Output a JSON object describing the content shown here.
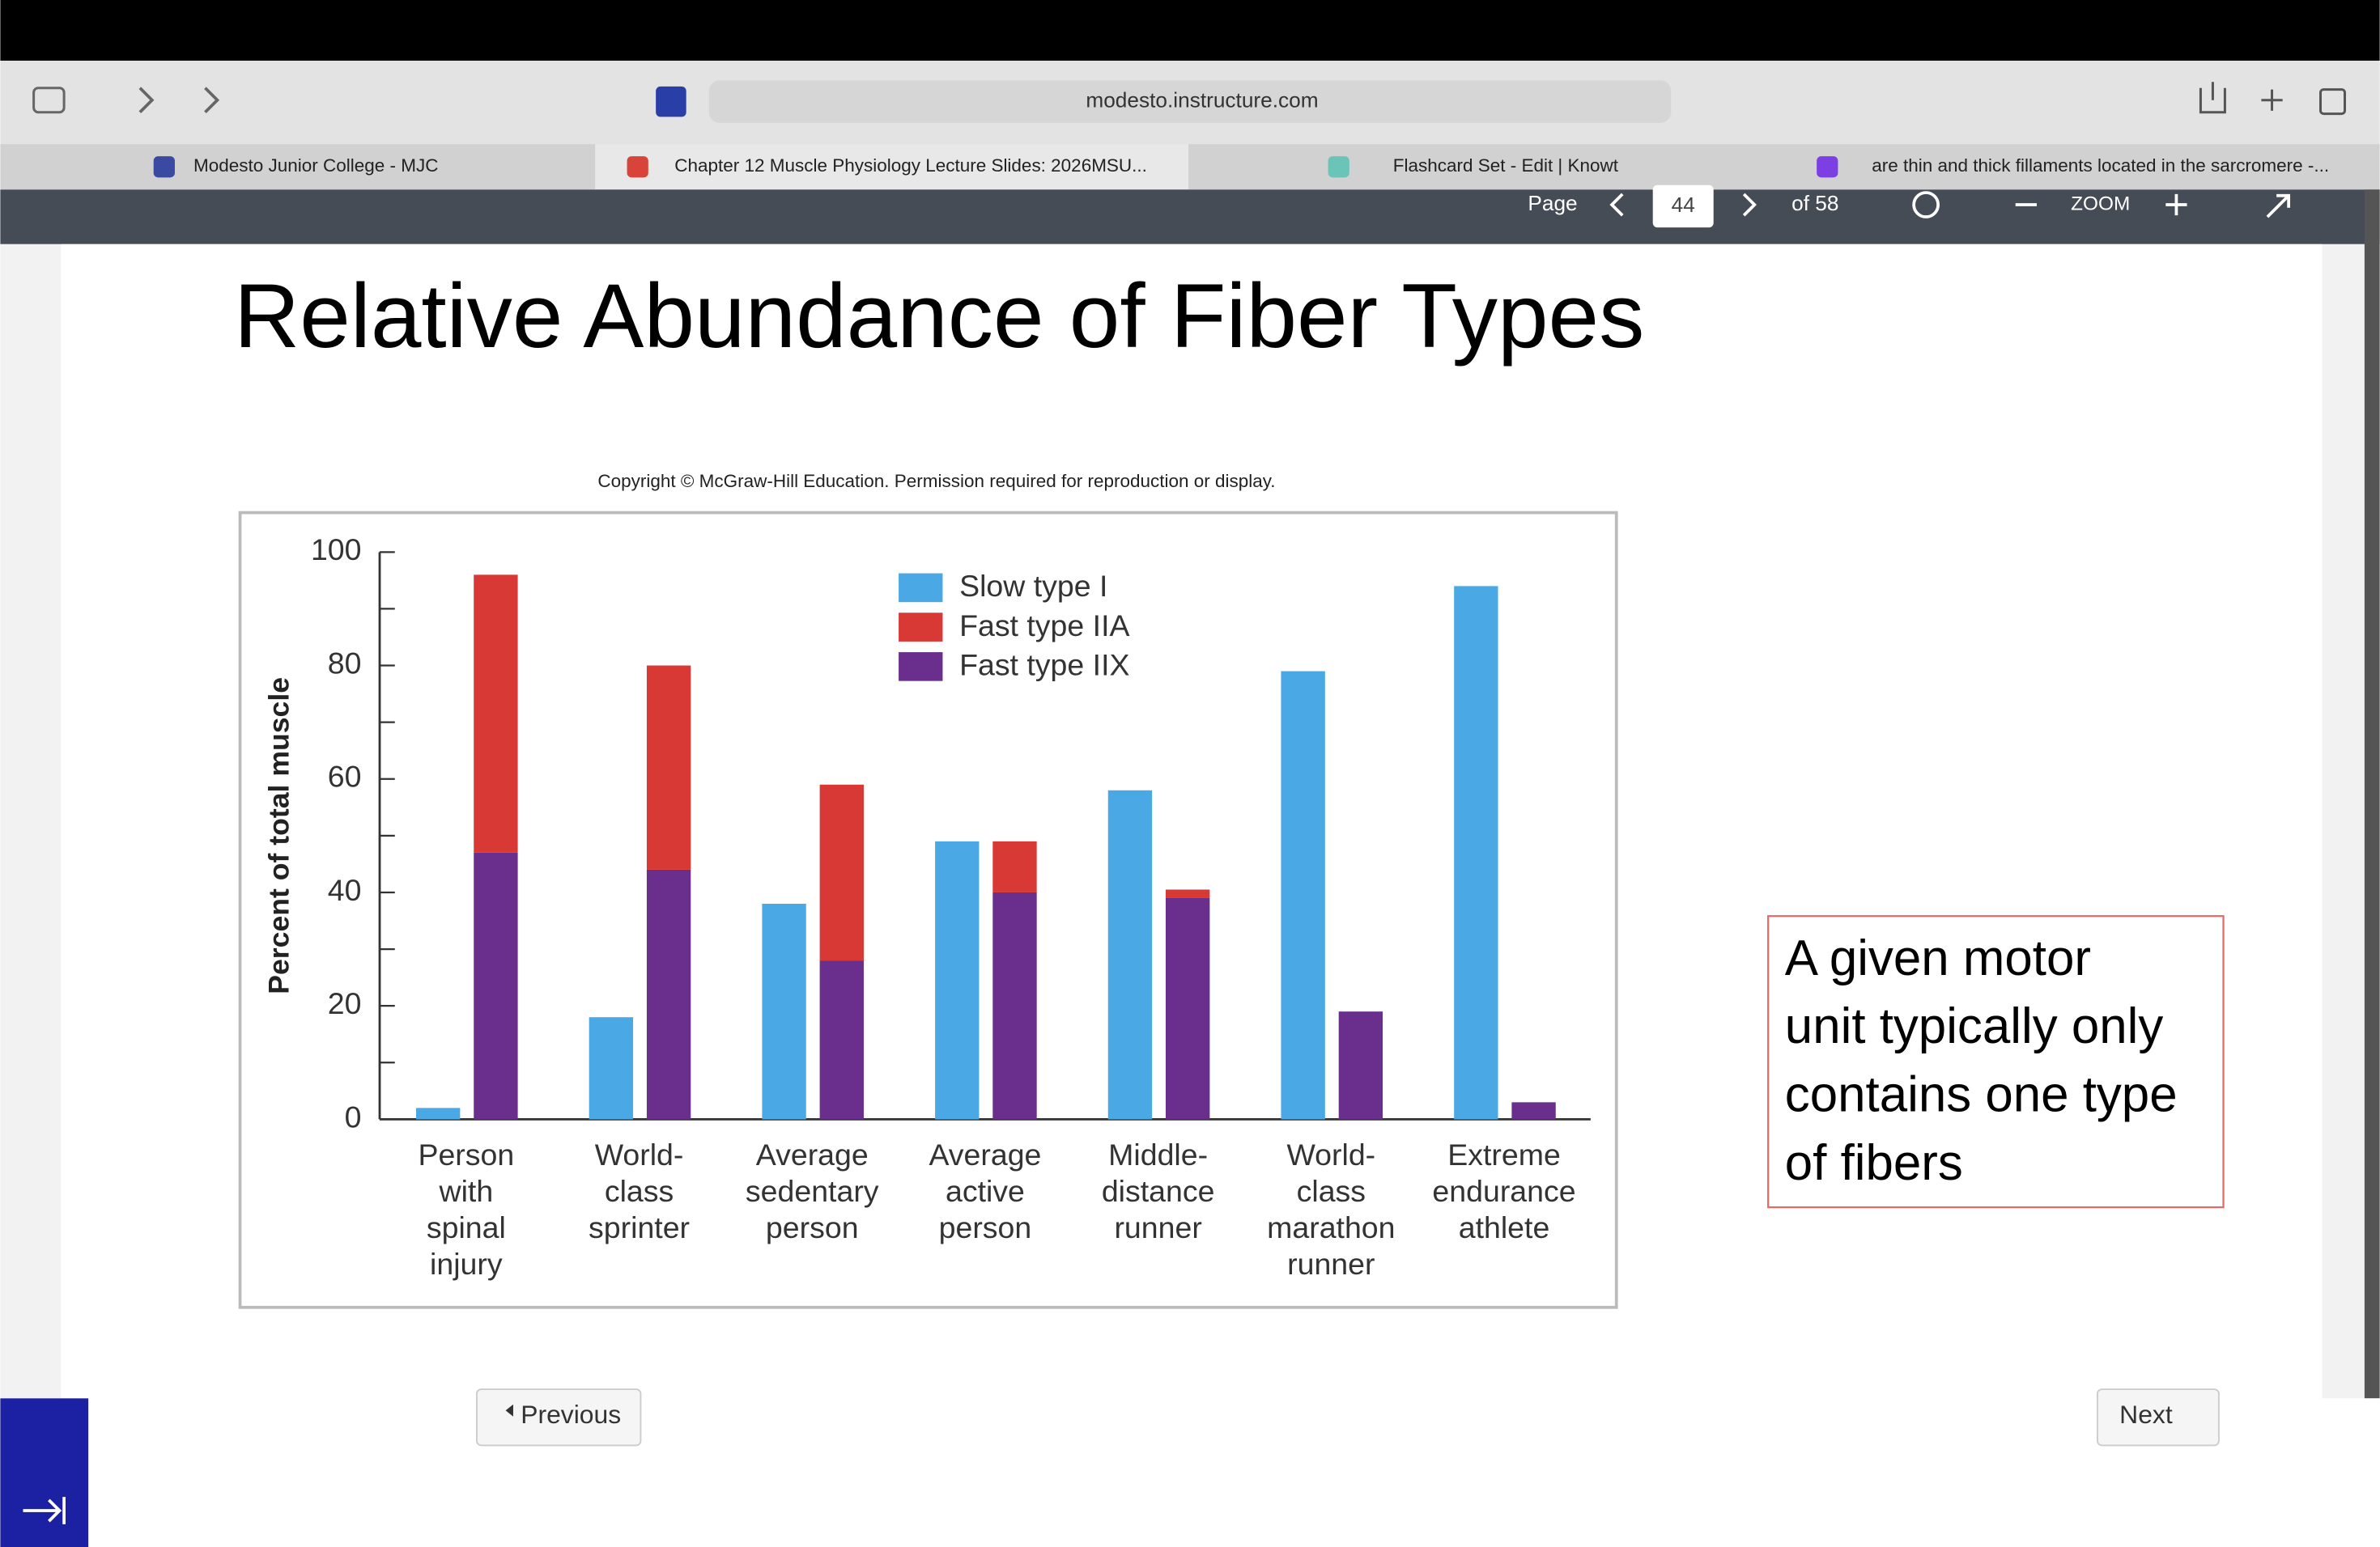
{
  "browser": {
    "url": "modesto.instructure.com",
    "tabs": [
      "Modesto Junior College - MJC",
      "Chapter 12 Muscle Physiology Lecture Slides: 2026MSU...",
      "Flashcard Set - Edit | Knowt",
      "are thin and thick fillaments located in the sarcromere -..."
    ]
  },
  "viewer": {
    "page_label": "Page",
    "page": "44",
    "of": "of 58",
    "zoom": "ZOOM"
  },
  "slide": {
    "title": "Relative Abundance of Fiber Types",
    "copyright": "Copyright © McGraw-Hill Education. Permission required for reproduction or display.",
    "note": [
      "A given motor",
      "unit typically only",
      "contains one type",
      "of fibers"
    ]
  },
  "nav": {
    "previous": "Previous",
    "next": "Next"
  },
  "chart_data": {
    "type": "grouped-stacked-bar",
    "ylabel": "Percent of total muscle",
    "categories": [
      [
        "Person",
        "with",
        "spinal",
        "injury"
      ],
      [
        "World-",
        "class",
        "sprinter"
      ],
      [
        "Average",
        "sedentary",
        "person"
      ],
      [
        "Average",
        "active",
        "person"
      ],
      [
        "Middle-",
        "distance",
        "runner"
      ],
      [
        "World-",
        "class",
        "marathon",
        "runner"
      ],
      [
        "Extreme",
        "endurance",
        "athlete"
      ]
    ],
    "series": [
      {
        "name": "Slow type I",
        "color": "#4aa9e5",
        "values": [
          2,
          18,
          38,
          49,
          58,
          79,
          94
        ]
      },
      {
        "name": "Fast type IIA",
        "color": "#d93935",
        "values": [
          49,
          36,
          31,
          9,
          1.5,
          0,
          0
        ]
      },
      {
        "name": "Fast type IIX",
        "color": "#6a2e8d",
        "values": [
          47,
          44,
          28,
          40,
          39,
          19,
          3
        ]
      }
    ],
    "ylim": [
      0,
      100
    ],
    "yticks": [
      0,
      20,
      40,
      60,
      80,
      100
    ],
    "minor_yticks": [
      10,
      30,
      50,
      70,
      90
    ],
    "legend": "top"
  }
}
